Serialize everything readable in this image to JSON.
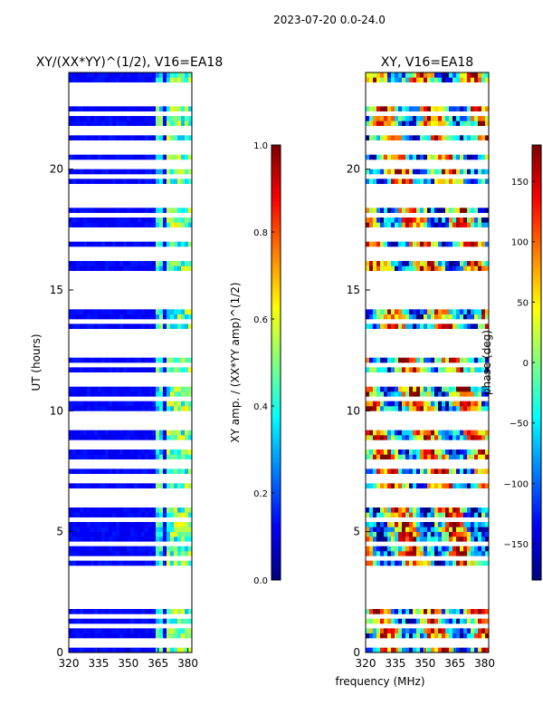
{
  "figure": {
    "suptitle": "2023-07-20 0.0-24.0",
    "shared_xlabel": "frequency (MHz)",
    "colormap": [
      "#00007f",
      "#0000ff",
      "#007fff",
      "#00ffff",
      "#7fff7f",
      "#ffff00",
      "#ff7f00",
      "#ff0000",
      "#7f0000"
    ]
  },
  "chart_data": [
    {
      "type": "heatmap",
      "title": "XY/(XX*YY)^(1/2), V16=EA18",
      "ylabel": "UT (hours)",
      "xlabel": "",
      "xlim": [
        320,
        382
      ],
      "ylim": [
        0,
        24
      ],
      "xticks": [
        320,
        335,
        350,
        365,
        380
      ],
      "yticks": [
        0,
        5,
        10,
        15,
        20
      ],
      "colorbar": {
        "label": "XY amp. / (XX*YY amp)^(1/2)",
        "range": [
          0.0,
          1.0
        ],
        "ticks": [
          "0.0",
          "0.2",
          "0.4",
          "0.6",
          "0.8",
          "1.0"
        ]
      },
      "description_values": {
        "background_level": 0.1,
        "band_370_382_level": 0.45,
        "band_363_368_level": 0.35
      },
      "gap_rows_hours": [
        0.4,
        1.1,
        1.5,
        2.0,
        2.4,
        2.6,
        3.0,
        3.3,
        3.5,
        3.9,
        4.5,
        5.5,
        6.1,
        6.3,
        6.6,
        7.2,
        7.7,
        7.9,
        8.6,
        9.4,
        9.7,
        9.9,
        10.5,
        11.2,
        11.4,
        11.9,
        12.3,
        12.6,
        13.0,
        13.3,
        13.7,
        14.3,
        14.6,
        14.9,
        15.2,
        15.6,
        16.3,
        16.6,
        17.2,
        17.5,
        18.1,
        18.5,
        18.8,
        19.2,
        19.7,
        20.2,
        20.7,
        21.0,
        21.6,
        22.3,
        22.7,
        23.0,
        23.4
      ]
    },
    {
      "type": "heatmap",
      "title": "XY, V16=EA18",
      "ylabel": "",
      "xlabel": "frequency (MHz)",
      "xlim": [
        320,
        382
      ],
      "ylim": [
        0,
        24
      ],
      "xticks": [
        320,
        335,
        350,
        365,
        380
      ],
      "yticks": [
        0,
        5,
        10,
        15,
        20
      ],
      "colorbar": {
        "label": "phase (deg)",
        "range": [
          -180,
          180
        ],
        "ticks": [
          "−150",
          "−100",
          "−50",
          "0",
          "50",
          "100",
          "150"
        ]
      },
      "gap_rows_hours": [
        0.4,
        1.1,
        1.5,
        2.0,
        2.4,
        2.6,
        3.0,
        3.3,
        3.5,
        3.9,
        4.5,
        5.5,
        6.1,
        6.3,
        6.6,
        7.2,
        7.7,
        7.9,
        8.6,
        9.4,
        9.7,
        9.9,
        10.5,
        11.2,
        11.4,
        11.9,
        12.3,
        12.6,
        13.0,
        13.3,
        13.7,
        14.3,
        14.6,
        14.9,
        15.2,
        15.6,
        16.3,
        16.6,
        17.2,
        17.5,
        18.1,
        18.5,
        18.8,
        19.2,
        19.7,
        20.2,
        20.7,
        21.0,
        21.6,
        22.3,
        22.7,
        23.0,
        23.4
      ]
    }
  ]
}
